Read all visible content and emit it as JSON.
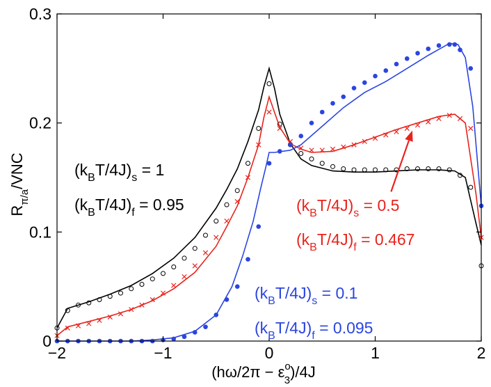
{
  "chart_data": {
    "type": "line",
    "title": "",
    "xlabel": {
      "prefix": "(hω/2π − ε",
      "sup": "o",
      "sub": "3",
      "suffix": ")/4J"
    },
    "ylabel": {
      "main": "R",
      "sub": "π/a",
      "suffix": "/VNC"
    },
    "xlim": [
      -2,
      2
    ],
    "ylim": [
      0,
      0.3
    ],
    "xticks": [
      -2,
      -1,
      0,
      1,
      2
    ],
    "xtick_labels": [
      "−2",
      "−1",
      "0",
      "1",
      "2"
    ],
    "yticks": [
      0,
      0.1,
      0.2,
      0.3
    ],
    "ytick_labels": [
      "0",
      "0.1",
      "0.2",
      "0.3"
    ],
    "grid": false,
    "series": [
      {
        "name": "T=1",
        "color": "#000000",
        "marker": "open-circle",
        "line_x": [
          -2,
          -1.9,
          -1.7,
          -1.5,
          -1.3,
          -1.1,
          -0.9,
          -0.7,
          -0.5,
          -0.4,
          -0.3,
          -0.2,
          -0.1,
          -0.05,
          0,
          0.05,
          0.1,
          0.2,
          0.3,
          0.4,
          0.6,
          0.8,
          1.0,
          1.2,
          1.4,
          1.6,
          1.75,
          1.85,
          1.95,
          2
        ],
        "line_y": [
          0.012,
          0.03,
          0.036,
          0.043,
          0.051,
          0.062,
          0.076,
          0.095,
          0.122,
          0.139,
          0.158,
          0.183,
          0.212,
          0.233,
          0.25,
          0.232,
          0.208,
          0.181,
          0.167,
          0.161,
          0.156,
          0.155,
          0.155,
          0.156,
          0.157,
          0.157,
          0.156,
          0.15,
          0.108,
          0.088
        ],
        "marker_x": [
          -2,
          -1.9,
          -1.8,
          -1.7,
          -1.6,
          -1.5,
          -1.4,
          -1.3,
          -1.2,
          -1.1,
          -1.0,
          -0.9,
          -0.8,
          -0.7,
          -0.6,
          -0.5,
          -0.4,
          -0.3,
          -0.2,
          -0.1,
          0,
          0.1,
          0.2,
          0.3,
          0.4,
          0.5,
          0.6,
          0.7,
          0.8,
          0.9,
          1.0,
          1.1,
          1.2,
          1.3,
          1.4,
          1.5,
          1.6,
          1.7,
          1.8,
          1.9,
          2
        ],
        "marker_y": [
          0.012,
          0.028,
          0.033,
          0.035,
          0.038,
          0.041,
          0.044,
          0.048,
          0.052,
          0.057,
          0.062,
          0.068,
          0.076,
          0.085,
          0.097,
          0.11,
          0.125,
          0.138,
          0.163,
          0.195,
          0.236,
          0.199,
          0.18,
          0.172,
          0.167,
          0.163,
          0.16,
          0.158,
          0.157,
          0.157,
          0.157,
          0.157,
          0.157,
          0.158,
          0.158,
          0.158,
          0.158,
          0.157,
          0.152,
          0.141,
          0.069
        ]
      },
      {
        "name": "T=0.5",
        "color": "#e8231c",
        "marker": "x",
        "line_x": [
          -2,
          -1.9,
          -1.7,
          -1.5,
          -1.3,
          -1.1,
          -0.9,
          -0.7,
          -0.5,
          -0.4,
          -0.3,
          -0.2,
          -0.1,
          -0.05,
          0,
          0.05,
          0.1,
          0.2,
          0.3,
          0.4,
          0.6,
          0.8,
          1.0,
          1.2,
          1.4,
          1.6,
          1.75,
          1.85,
          1.95,
          2
        ],
        "line_y": [
          0.005,
          0.013,
          0.018,
          0.023,
          0.029,
          0.037,
          0.048,
          0.063,
          0.087,
          0.105,
          0.124,
          0.15,
          0.18,
          0.205,
          0.224,
          0.21,
          0.196,
          0.181,
          0.176,
          0.173,
          0.174,
          0.18,
          0.187,
          0.194,
          0.2,
          0.206,
          0.208,
          0.2,
          0.135,
          0.095
        ],
        "marker_x": [
          -2,
          -1.9,
          -1.8,
          -1.7,
          -1.6,
          -1.5,
          -1.4,
          -1.3,
          -1.2,
          -1.1,
          -1.0,
          -0.9,
          -0.8,
          -0.7,
          -0.6,
          -0.5,
          -0.4,
          -0.3,
          -0.2,
          -0.1,
          0,
          0.1,
          0.2,
          0.3,
          0.4,
          0.5,
          0.6,
          0.7,
          0.8,
          0.9,
          1.0,
          1.1,
          1.2,
          1.3,
          1.4,
          1.5,
          1.6,
          1.7,
          1.8,
          1.9,
          2
        ],
        "marker_y": [
          0.005,
          0.012,
          0.014,
          0.016,
          0.019,
          0.022,
          0.025,
          0.029,
          0.033,
          0.038,
          0.044,
          0.051,
          0.059,
          0.069,
          0.081,
          0.095,
          0.11,
          0.128,
          0.15,
          0.18,
          0.21,
          0.195,
          0.183,
          0.177,
          0.175,
          0.175,
          0.176,
          0.178,
          0.18,
          0.183,
          0.186,
          0.189,
          0.192,
          0.195,
          0.198,
          0.201,
          0.204,
          0.207,
          0.204,
          0.195,
          0.095
        ]
      },
      {
        "name": "T=0.1",
        "color": "#2b45e0",
        "marker": "filled-dot",
        "line_x": [
          -2,
          -1.6,
          -1.3,
          -1.1,
          -0.9,
          -0.7,
          -0.5,
          -0.35,
          -0.25,
          -0.15,
          -0.08,
          -0.03,
          0,
          0.05,
          0.2,
          0.3,
          0.5,
          0.7,
          0.9,
          1.1,
          1.3,
          1.5,
          1.7,
          1.78,
          1.85,
          1.92,
          2
        ],
        "line_y": [
          0.0,
          0.0,
          0.0,
          0.001,
          0.003,
          0.009,
          0.024,
          0.05,
          0.078,
          0.11,
          0.14,
          0.16,
          0.173,
          0.173,
          0.175,
          0.18,
          0.197,
          0.214,
          0.228,
          0.238,
          0.25,
          0.262,
          0.273,
          0.272,
          0.26,
          0.215,
          0.124
        ],
        "marker_x": [
          -2,
          -1.9,
          -1.8,
          -1.7,
          -1.6,
          -1.5,
          -1.4,
          -1.3,
          -1.2,
          -1.1,
          -1.0,
          -0.9,
          -0.8,
          -0.7,
          -0.6,
          -0.5,
          -0.4,
          -0.3,
          -0.2,
          -0.1,
          0,
          0.1,
          0.2,
          0.3,
          0.4,
          0.5,
          0.6,
          0.7,
          0.8,
          0.9,
          1.0,
          1.1,
          1.2,
          1.3,
          1.4,
          1.5,
          1.6,
          1.7,
          1.75,
          1.8,
          1.9,
          2
        ],
        "marker_y": [
          0.0,
          0.0,
          0.0,
          0.0,
          0.0,
          0.0,
          0.0,
          0.0,
          0.0,
          0.0,
          0.001,
          0.002,
          0.004,
          0.008,
          0.013,
          0.024,
          0.038,
          0.05,
          0.075,
          0.105,
          0.163,
          0.174,
          0.18,
          0.188,
          0.2,
          0.21,
          0.218,
          0.224,
          0.232,
          0.237,
          0.243,
          0.248,
          0.254,
          0.259,
          0.264,
          0.268,
          0.271,
          0.272,
          0.272,
          0.267,
          0.25,
          0.124
        ]
      }
    ],
    "annotations": [
      {
        "id": "t1-s",
        "color": "#000000",
        "pre": "(k",
        "sub1": "B",
        "mid": "T/4J)",
        "sub2": "s",
        "post": " = 1"
      },
      {
        "id": "t1-f",
        "color": "#000000",
        "pre": "(k",
        "sub1": "B",
        "mid": "T/4J)",
        "sub2": "f",
        "post": " = 0.95"
      },
      {
        "id": "t05-s",
        "color": "#e8231c",
        "pre": "(k",
        "sub1": "B",
        "mid": "T/4J)",
        "sub2": "s",
        "post": " = 0.5"
      },
      {
        "id": "t05-f",
        "color": "#e8231c",
        "pre": "(k",
        "sub1": "B",
        "mid": "T/4J)",
        "sub2": "f",
        "post": " = 0.467"
      },
      {
        "id": "t01-s",
        "color": "#2b45e0",
        "pre": "(k",
        "sub1": "B",
        "mid": "T/4J)",
        "sub2": "s",
        "post": " = 0.1"
      },
      {
        "id": "t01-f",
        "color": "#2b45e0",
        "pre": "(k",
        "sub1": "B",
        "mid": "T/4J)",
        "sub2": "f",
        "post": " = 0.095"
      }
    ],
    "arrow": {
      "color": "#e8231c",
      "from": [
        1.15,
        0.137
      ],
      "to": [
        1.35,
        0.193
      ]
    }
  }
}
